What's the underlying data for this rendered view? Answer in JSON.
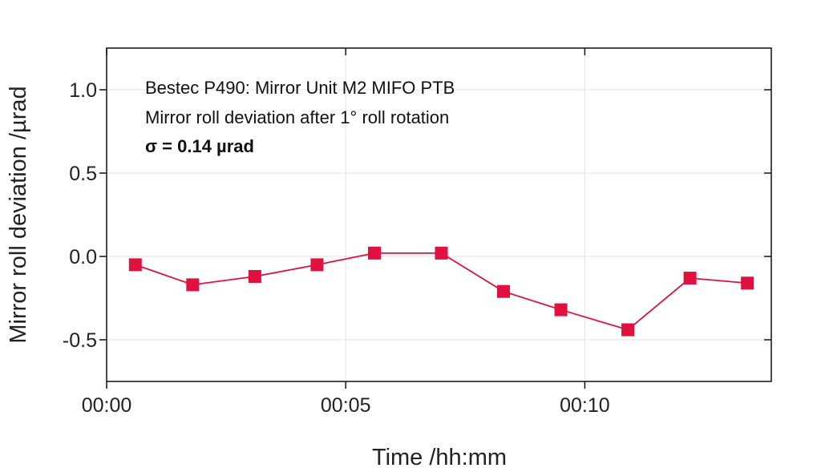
{
  "chart_data": {
    "type": "line",
    "title": "",
    "xlabel": "Time /hh:mm",
    "ylabel": "Mirror roll deviation /µrad",
    "x_unit": "minutes",
    "x": [
      0.6,
      1.8,
      3.1,
      4.4,
      5.6,
      7.0,
      8.3,
      9.5,
      10.9,
      12.2,
      13.4
    ],
    "xlim": [
      0,
      13.9
    ],
    "ylim": [
      -0.75,
      1.25
    ],
    "x_ticks": [
      {
        "value": 0,
        "label": "00:00"
      },
      {
        "value": 5,
        "label": "00:05"
      },
      {
        "value": 10,
        "label": "00:10"
      }
    ],
    "y_ticks": [
      {
        "value": 1.0,
        "label": "1.0"
      },
      {
        "value": 0.5,
        "label": "0.5"
      },
      {
        "value": 0.0,
        "label": "0.0"
      },
      {
        "value": -0.5,
        "label": "-0.5"
      }
    ],
    "grid": true,
    "series": [
      {
        "values": [
          -0.05,
          -0.17,
          -0.12,
          -0.05,
          0.02,
          0.02,
          -0.21,
          -0.32,
          -0.44,
          -0.13,
          -0.16
        ],
        "color": "#e0103f",
        "marker": "square"
      }
    ],
    "annotations": [
      "Bestec P490: Mirror Unit M2 MIFO PTB",
      "Mirror roll deviation after 1° roll rotation",
      "σ = 0.14 µrad"
    ]
  }
}
